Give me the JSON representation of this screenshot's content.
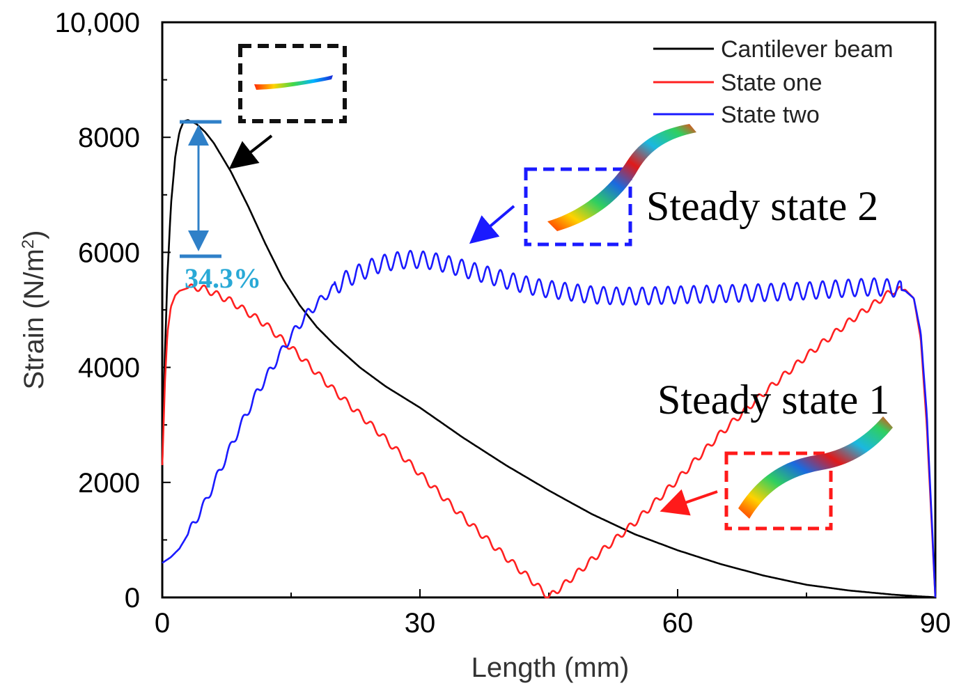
{
  "chart_data": {
    "type": "line",
    "title": "",
    "xlabel": "Length (mm)",
    "ylabel_main": "Strain (N/m",
    "ylabel_sup": "2",
    "ylabel_end": ")",
    "xlim": [
      0,
      90
    ],
    "ylim": [
      0,
      10000
    ],
    "xticks": [
      0,
      30,
      60,
      90
    ],
    "xtick_labels": [
      "0",
      "30",
      "60",
      "90"
    ],
    "yticks": [
      0,
      2000,
      4000,
      6000,
      8000,
      10000
    ],
    "ytick_labels": [
      "0",
      "2000",
      "4000",
      "6000",
      "8000",
      "10,000"
    ],
    "legend_position": "top-right",
    "series": [
      {
        "name": "Cantilever beam",
        "color": "#000000",
        "x": [
          0,
          0.3,
          0.6,
          1,
          1.5,
          2,
          2.5,
          3,
          4,
          5,
          6,
          8,
          10,
          12,
          14,
          16,
          18,
          20,
          23,
          26,
          30,
          35,
          40,
          45,
          50,
          55,
          60,
          65,
          70,
          75,
          80,
          85,
          87,
          88.5,
          89.5,
          90
        ],
        "y": [
          2300,
          4200,
          5600,
          6800,
          7650,
          8100,
          8280,
          8300,
          8230,
          8090,
          7900,
          7400,
          6800,
          6150,
          5550,
          5080,
          4700,
          4400,
          4000,
          3670,
          3300,
          2780,
          2300,
          1860,
          1450,
          1100,
          820,
          580,
          380,
          220,
          120,
          50,
          30,
          15,
          8,
          0
        ]
      },
      {
        "name": "State one",
        "color": "#ff2020",
        "x": [
          0,
          0.3,
          0.6,
          1,
          1.5,
          2,
          3,
          4,
          5,
          8,
          12,
          16,
          20,
          25,
          30,
          35,
          40,
          43,
          45,
          47,
          50,
          55,
          60,
          65,
          70,
          75,
          80,
          85,
          86.5,
          87.5,
          88.3,
          89,
          89.6,
          90
        ],
        "y": [
          2300,
          3700,
          4600,
          5050,
          5250,
          5330,
          5380,
          5390,
          5360,
          5150,
          4750,
          4200,
          3600,
          2900,
          2150,
          1400,
          700,
          300,
          0,
          250,
          650,
          1300,
          2050,
          2850,
          3550,
          4200,
          4800,
          5330,
          5350,
          5200,
          4500,
          3000,
          1200,
          0
        ]
      },
      {
        "name": "State two",
        "color": "#1a1aff",
        "x": [
          0,
          1,
          2,
          3,
          5,
          7,
          9,
          11,
          13,
          15,
          17,
          19,
          21,
          23,
          25,
          27,
          29,
          31,
          33,
          35,
          38,
          41,
          44,
          47,
          50,
          53,
          56,
          60,
          65,
          70,
          75,
          80,
          83,
          85,
          86.5,
          87.5,
          88.3,
          89,
          89.6,
          90
        ],
        "y": [
          600,
          700,
          850,
          1100,
          1650,
          2300,
          2950,
          3550,
          4050,
          4550,
          4950,
          5250,
          5500,
          5650,
          5780,
          5850,
          5880,
          5860,
          5800,
          5720,
          5600,
          5480,
          5380,
          5320,
          5260,
          5240,
          5240,
          5260,
          5280,
          5300,
          5330,
          5380,
          5400,
          5380,
          5330,
          5200,
          4600,
          3200,
          1300,
          0
        ]
      }
    ],
    "annotations": {
      "peak_drop_percent": "34.3%",
      "steady_state_1": "Steady state 1",
      "steady_state_2": "Steady state 2"
    }
  },
  "colors": {
    "cantilever": "#000000",
    "state_one": "#ff2020",
    "state_two": "#1a1aff",
    "marker_blue": "#2f80c8",
    "pct_text": "#29a9d6",
    "red_box": "#ff1a1a",
    "blue_box": "#1a1aff"
  }
}
